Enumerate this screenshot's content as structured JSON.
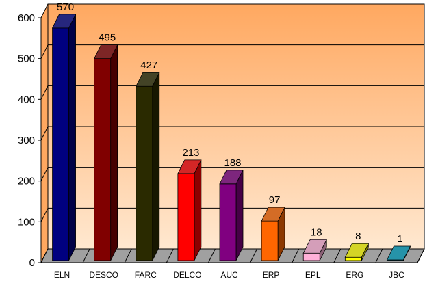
{
  "chart_data": {
    "type": "bar",
    "style": "3d-column",
    "categories": [
      "ELN",
      "DESCO",
      "FARC",
      "DELCO",
      "AUC",
      "ERP",
      "EPL",
      "ERG",
      "JBC"
    ],
    "values": [
      570,
      495,
      427,
      213,
      188,
      97,
      18,
      8,
      1
    ],
    "data_labels": [
      "570",
      "495",
      "427",
      "213",
      "188",
      "97",
      "18",
      "8",
      "1"
    ],
    "title": "",
    "xlabel": "",
    "ylabel": "",
    "ylim": [
      0,
      600
    ],
    "yticks": [
      "0",
      "100",
      "200",
      "300",
      "400",
      "500",
      "600"
    ],
    "grid": true,
    "legend": "none",
    "bar_colors": [
      "#000080",
      "#800000",
      "#2a2a00",
      "#ff0000",
      "#800080",
      "#ff6600",
      "#ffb0d8",
      "#ffff00",
      "#00a0c0"
    ],
    "wall_gradient": [
      "#ffa860",
      "#ffe8d0"
    ],
    "floor_color": "#a0a0a0"
  }
}
